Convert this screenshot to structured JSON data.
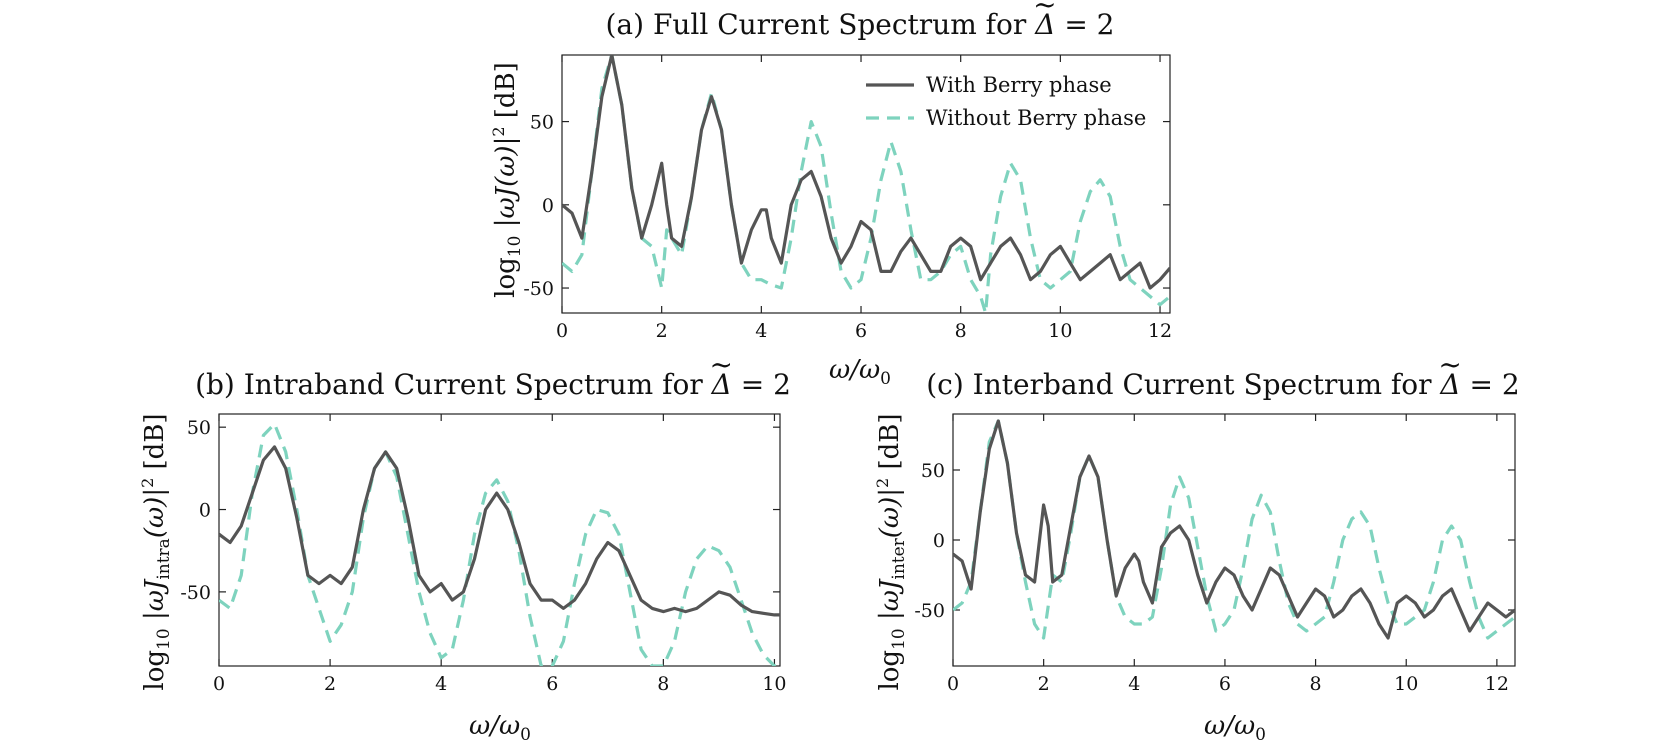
{
  "colors": {
    "with": "#555555",
    "without": "#7ed3be",
    "frame": "#222222"
  },
  "chart_data": [
    {
      "type": "line",
      "id": "a",
      "title_prefix": "(a) Full Current Spectrum for ",
      "title_symbol": "Δ",
      "title_suffix": " = 2",
      "ylabel_main": "log",
      "ylabel_sub": "10",
      "ylabel_rest": " |ωJ(ω)|",
      "ylabel_power": "2",
      "ylabel_unit": " [dB]",
      "xlabel": "ω/ω",
      "xlabel_sub": "0",
      "xlim": [
        0,
        12.2
      ],
      "ylim": [
        -65,
        90
      ],
      "xticks": [
        0,
        2,
        4,
        6,
        8,
        10,
        12
      ],
      "yticks": [
        -50,
        0,
        50
      ],
      "ytick_side": "right",
      "legend": [
        "With Berry phase",
        "Without Berry phase"
      ],
      "legend_position": "top-right",
      "series": [
        {
          "name": "With Berry phase",
          "x": [
            0,
            0.2,
            0.4,
            0.6,
            0.8,
            1.0,
            1.2,
            1.4,
            1.6,
            1.8,
            2.0,
            2.1,
            2.2,
            2.4,
            2.6,
            2.8,
            3.0,
            3.2,
            3.4,
            3.6,
            3.8,
            4.0,
            4.1,
            4.2,
            4.4,
            4.6,
            4.8,
            5.0,
            5.2,
            5.4,
            5.6,
            5.8,
            6.0,
            6.2,
            6.4,
            6.6,
            6.8,
            7.0,
            7.2,
            7.4,
            7.6,
            7.8,
            8.0,
            8.2,
            8.4,
            8.6,
            8.8,
            9.0,
            9.2,
            9.4,
            9.6,
            9.8,
            10.0,
            10.2,
            10.4,
            10.6,
            10.8,
            11.0,
            11.2,
            11.4,
            11.6,
            11.8,
            12.0,
            12.2
          ],
          "y": [
            0,
            -5,
            -20,
            20,
            65,
            90,
            60,
            10,
            -20,
            0,
            25,
            0,
            -20,
            -25,
            5,
            45,
            65,
            45,
            0,
            -35,
            -15,
            -3,
            -3,
            -20,
            -35,
            0,
            15,
            20,
            5,
            -20,
            -35,
            -25,
            -10,
            -15,
            -40,
            -40,
            -28,
            -20,
            -30,
            -40,
            -40,
            -25,
            -20,
            -25,
            -45,
            -35,
            -25,
            -20,
            -30,
            -45,
            -40,
            -30,
            -25,
            -35,
            -45,
            -40,
            -35,
            -30,
            -45,
            -40,
            -35,
            -50,
            -45,
            -38
          ]
        },
        {
          "name": "Without Berry phase",
          "x": [
            0,
            0.2,
            0.4,
            0.6,
            0.8,
            1.0,
            1.2,
            1.4,
            1.6,
            1.8,
            2.0,
            2.1,
            2.2,
            2.4,
            2.6,
            2.8,
            3.0,
            3.2,
            3.4,
            3.6,
            3.8,
            4.0,
            4.2,
            4.4,
            4.6,
            4.8,
            5.0,
            5.2,
            5.4,
            5.6,
            5.8,
            6.0,
            6.2,
            6.4,
            6.6,
            6.8,
            7.0,
            7.2,
            7.4,
            7.6,
            7.8,
            8.0,
            8.2,
            8.4,
            8.5,
            8.6,
            8.8,
            9.0,
            9.2,
            9.4,
            9.6,
            9.8,
            10.0,
            10.2,
            10.4,
            10.6,
            10.8,
            11.0,
            11.2,
            11.4,
            11.6,
            11.8,
            12.0,
            12.2
          ],
          "y": [
            -35,
            -40,
            -30,
            20,
            70,
            90,
            60,
            10,
            -20,
            -25,
            -50,
            -15,
            -20,
            -30,
            5,
            45,
            67,
            45,
            0,
            -35,
            -45,
            -45,
            -48,
            -50,
            -20,
            20,
            50,
            35,
            -5,
            -40,
            -50,
            -45,
            -20,
            15,
            38,
            20,
            -15,
            -45,
            -45,
            -40,
            -30,
            -25,
            -45,
            -55,
            -65,
            -30,
            5,
            25,
            15,
            -20,
            -45,
            -50,
            -45,
            -40,
            -10,
            8,
            15,
            5,
            -25,
            -45,
            -50,
            -55,
            -60,
            -55
          ]
        }
      ]
    },
    {
      "type": "line",
      "id": "b",
      "title_prefix": "(b) Intraband Current Spectrum for ",
      "title_symbol": "Δ",
      "title_suffix": " = 2",
      "ylabel_main": "log",
      "ylabel_sub": "10",
      "ylabel_rest": " |ωJ",
      "ylabel_subscript2": "intra",
      "ylabel_rest2": "(ω)|",
      "ylabel_power": "2",
      "ylabel_unit": " [dB]",
      "xlabel": "ω/ω",
      "xlabel_sub": "0",
      "xlim": [
        0,
        10.1
      ],
      "ylim": [
        -95,
        58
      ],
      "xticks": [
        0,
        2,
        4,
        6,
        8,
        10
      ],
      "yticks": [
        -50,
        0,
        50
      ],
      "ytick_side": "left",
      "series": [
        {
          "name": "With Berry phase",
          "x": [
            0,
            0.2,
            0.4,
            0.6,
            0.8,
            1.0,
            1.2,
            1.4,
            1.6,
            1.8,
            2.0,
            2.2,
            2.4,
            2.6,
            2.8,
            3.0,
            3.2,
            3.4,
            3.6,
            3.8,
            4.0,
            4.2,
            4.4,
            4.6,
            4.8,
            5.0,
            5.2,
            5.4,
            5.6,
            5.8,
            6.0,
            6.2,
            6.4,
            6.6,
            6.8,
            7.0,
            7.2,
            7.4,
            7.6,
            7.8,
            8.0,
            8.2,
            8.4,
            8.6,
            8.8,
            9.0,
            9.2,
            9.4,
            9.6,
            9.8,
            10.0,
            10.1
          ],
          "y": [
            -15,
            -20,
            -10,
            10,
            30,
            38,
            25,
            -5,
            -40,
            -45,
            -40,
            -45,
            -35,
            0,
            25,
            35,
            25,
            -5,
            -40,
            -50,
            -45,
            -55,
            -50,
            -30,
            0,
            10,
            0,
            -20,
            -45,
            -55,
            -55,
            -60,
            -55,
            -45,
            -30,
            -20,
            -25,
            -40,
            -55,
            -60,
            -62,
            -60,
            -62,
            -60,
            -55,
            -50,
            -52,
            -58,
            -62,
            -63,
            -64,
            -64
          ]
        },
        {
          "name": "Without Berry phase",
          "x": [
            0,
            0.2,
            0.4,
            0.6,
            0.8,
            1.0,
            1.2,
            1.4,
            1.6,
            1.8,
            2.0,
            2.2,
            2.4,
            2.6,
            2.8,
            3.0,
            3.2,
            3.4,
            3.6,
            3.8,
            4.0,
            4.2,
            4.4,
            4.6,
            4.8,
            5.0,
            5.2,
            5.4,
            5.6,
            5.8,
            6.0,
            6.2,
            6.4,
            6.6,
            6.8,
            7.0,
            7.2,
            7.4,
            7.6,
            7.8,
            8.0,
            8.2,
            8.4,
            8.6,
            8.8,
            9.0,
            9.2,
            9.4,
            9.6,
            9.8,
            10.0,
            10.1
          ],
          "y": [
            -55,
            -60,
            -40,
            10,
            45,
            52,
            35,
            0,
            -40,
            -60,
            -80,
            -70,
            -50,
            -5,
            25,
            35,
            20,
            -15,
            -50,
            -75,
            -90,
            -85,
            -55,
            -15,
            10,
            18,
            5,
            -25,
            -65,
            -95,
            -95,
            -80,
            -45,
            -15,
            0,
            -2,
            -15,
            -50,
            -85,
            -95,
            -95,
            -80,
            -50,
            -30,
            -22,
            -25,
            -35,
            -55,
            -75,
            -88,
            -95,
            -95
          ]
        }
      ]
    },
    {
      "type": "line",
      "id": "c",
      "title_prefix": "(c) Interband Current Spectrum for ",
      "title_symbol": "Δ",
      "title_suffix": " = 2",
      "ylabel_main": "log",
      "ylabel_sub": "10",
      "ylabel_rest": " |ωJ",
      "ylabel_subscript2": "inter",
      "ylabel_rest2": "(ω)|",
      "ylabel_power": "2",
      "ylabel_unit": " [dB]",
      "xlabel": "ω/ω",
      "xlabel_sub": "0",
      "xlim": [
        0,
        12.4
      ],
      "ylim": [
        -90,
        90
      ],
      "xticks": [
        0,
        2,
        4,
        6,
        8,
        10,
        12
      ],
      "yticks": [
        -50,
        0,
        50
      ],
      "ytick_side": "right",
      "series": [
        {
          "name": "With Berry phase",
          "x": [
            0,
            0.2,
            0.4,
            0.6,
            0.8,
            1.0,
            1.2,
            1.4,
            1.6,
            1.8,
            2.0,
            2.1,
            2.2,
            2.4,
            2.6,
            2.8,
            3.0,
            3.2,
            3.4,
            3.6,
            3.8,
            4.0,
            4.1,
            4.2,
            4.4,
            4.6,
            4.8,
            5.0,
            5.2,
            5.4,
            5.6,
            5.8,
            6.0,
            6.2,
            6.4,
            6.6,
            6.8,
            7.0,
            7.2,
            7.4,
            7.6,
            7.8,
            8.0,
            8.2,
            8.4,
            8.6,
            8.8,
            9.0,
            9.2,
            9.4,
            9.6,
            9.8,
            10.0,
            10.2,
            10.4,
            10.6,
            10.8,
            11.0,
            11.2,
            11.4,
            11.6,
            11.8,
            12.0,
            12.2,
            12.4
          ],
          "y": [
            -10,
            -15,
            -35,
            20,
            65,
            85,
            55,
            5,
            -25,
            -30,
            25,
            10,
            -30,
            -25,
            10,
            45,
            60,
            45,
            0,
            -40,
            -20,
            -10,
            -15,
            -30,
            -45,
            -5,
            5,
            10,
            0,
            -25,
            -45,
            -30,
            -20,
            -25,
            -40,
            -50,
            -35,
            -20,
            -25,
            -40,
            -55,
            -45,
            -35,
            -40,
            -55,
            -50,
            -40,
            -35,
            -45,
            -60,
            -70,
            -45,
            -40,
            -45,
            -55,
            -50,
            -40,
            -35,
            -50,
            -65,
            -55,
            -45,
            -50,
            -55,
            -50
          ]
        },
        {
          "name": "Without Berry phase",
          "x": [
            0,
            0.2,
            0.4,
            0.6,
            0.8,
            1.0,
            1.2,
            1.4,
            1.6,
            1.8,
            2.0,
            2.2,
            2.4,
            2.6,
            2.8,
            3.0,
            3.2,
            3.4,
            3.6,
            3.8,
            4.0,
            4.2,
            4.4,
            4.6,
            4.8,
            5.0,
            5.2,
            5.4,
            5.6,
            5.8,
            6.0,
            6.2,
            6.4,
            6.6,
            6.8,
            7.0,
            7.2,
            7.4,
            7.6,
            7.8,
            8.0,
            8.2,
            8.4,
            8.6,
            8.8,
            9.0,
            9.2,
            9.4,
            9.6,
            9.8,
            10.0,
            10.2,
            10.4,
            10.6,
            10.8,
            11.0,
            11.2,
            11.4,
            11.6,
            11.8,
            12.0,
            12.2,
            12.4
          ],
          "y": [
            -50,
            -45,
            -30,
            20,
            70,
            85,
            55,
            5,
            -30,
            -60,
            -70,
            -25,
            -30,
            5,
            45,
            60,
            45,
            0,
            -40,
            -55,
            -60,
            -60,
            -55,
            -20,
            25,
            45,
            30,
            -5,
            -40,
            -65,
            -60,
            -50,
            -20,
            15,
            32,
            20,
            -15,
            -45,
            -60,
            -65,
            -60,
            -55,
            -30,
            0,
            15,
            20,
            10,
            -20,
            -45,
            -60,
            -60,
            -55,
            -50,
            -30,
            0,
            10,
            0,
            -30,
            -55,
            -70,
            -65,
            -60,
            -55
          ]
        }
      ]
    }
  ]
}
